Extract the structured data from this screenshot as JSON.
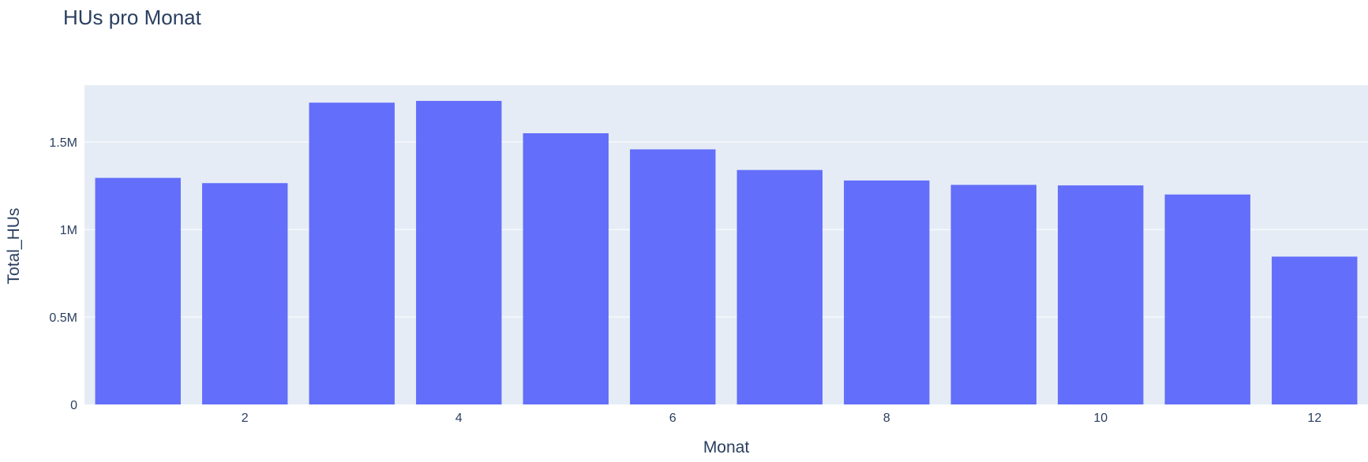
{
  "colors": {
    "bar": "#636efa",
    "plot_bg": "#e5ecf6",
    "grid": "#ffffff",
    "text": "#2a3f5f"
  },
  "chart_data": {
    "type": "bar",
    "title": "HUs pro Monat",
    "xlabel": "Monat",
    "ylabel": "Total_HUs",
    "categories": [
      1,
      2,
      3,
      4,
      5,
      6,
      7,
      8,
      9,
      10,
      11,
      12
    ],
    "values": [
      1295000,
      1265000,
      1725000,
      1735000,
      1550000,
      1458000,
      1340000,
      1280000,
      1255000,
      1252000,
      1200000,
      845000
    ],
    "ylim": [
      0,
      1825000
    ],
    "xlim": [
      0.5,
      12.5
    ],
    "x_ticks": [
      {
        "value": 2,
        "label": "2"
      },
      {
        "value": 4,
        "label": "4"
      },
      {
        "value": 6,
        "label": "6"
      },
      {
        "value": 8,
        "label": "8"
      },
      {
        "value": 10,
        "label": "10"
      },
      {
        "value": 12,
        "label": "12"
      }
    ],
    "y_ticks": [
      {
        "value": 0,
        "label": "0"
      },
      {
        "value": 500000,
        "label": "0.5M"
      },
      {
        "value": 1000000,
        "label": "1M"
      },
      {
        "value": 1500000,
        "label": "1.5M"
      }
    ],
    "grid": true,
    "legend": "none"
  }
}
